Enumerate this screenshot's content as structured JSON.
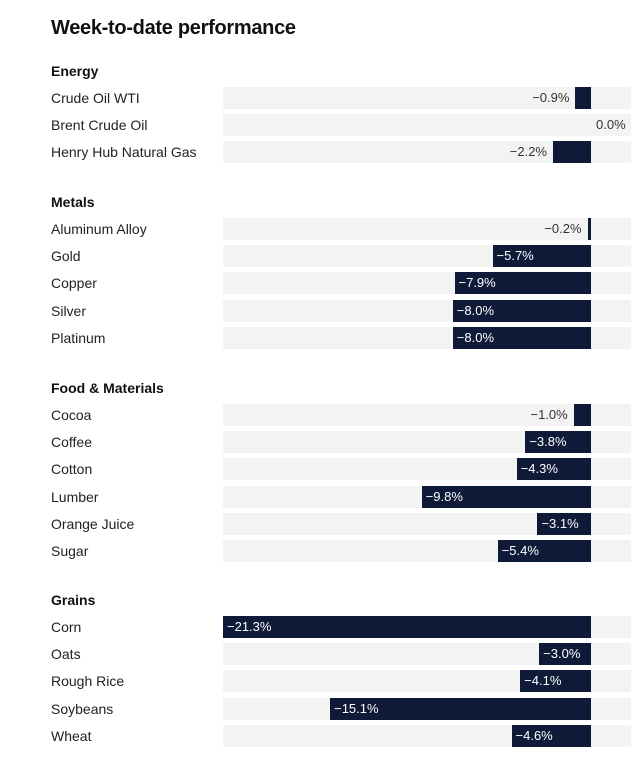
{
  "title": "Week-to-date performance",
  "colors": {
    "bar": "#0e1a38",
    "row_background": "#f3f3f3"
  },
  "chart_data": {
    "type": "bar",
    "orientation": "horizontal",
    "title": "Week-to-date performance",
    "unit": "%",
    "xlim": [
      -21.3,
      0
    ],
    "groups": [
      {
        "name": "Energy",
        "items": [
          {
            "label": "Crude Oil WTI",
            "value": -0.9,
            "text": "−0.9%"
          },
          {
            "label": "Brent Crude Oil",
            "value": 0.0,
            "text": "0.0%"
          },
          {
            "label": "Henry Hub Natural Gas",
            "value": -2.2,
            "text": "−2.2%"
          }
        ]
      },
      {
        "name": "Metals",
        "items": [
          {
            "label": "Aluminum Alloy",
            "value": -0.2,
            "text": "−0.2%"
          },
          {
            "label": "Gold",
            "value": -5.7,
            "text": "−5.7%"
          },
          {
            "label": "Copper",
            "value": -7.9,
            "text": "−7.9%"
          },
          {
            "label": "Silver",
            "value": -8.0,
            "text": "−8.0%"
          },
          {
            "label": "Platinum",
            "value": -8.0,
            "text": "−8.0%"
          }
        ]
      },
      {
        "name": "Food & Materials",
        "items": [
          {
            "label": "Cocoa",
            "value": -1.0,
            "text": "−1.0%"
          },
          {
            "label": "Coffee",
            "value": -3.8,
            "text": "−3.8%"
          },
          {
            "label": "Cotton",
            "value": -4.3,
            "text": "−4.3%"
          },
          {
            "label": "Lumber",
            "value": -9.8,
            "text": "−9.8%"
          },
          {
            "label": "Orange Juice",
            "value": -3.1,
            "text": "−3.1%"
          },
          {
            "label": "Sugar",
            "value": -5.4,
            "text": "−5.4%"
          }
        ]
      },
      {
        "name": "Grains",
        "items": [
          {
            "label": "Corn",
            "value": -21.3,
            "text": "−21.3%"
          },
          {
            "label": "Oats",
            "value": -3.0,
            "text": "−3.0%"
          },
          {
            "label": "Rough Rice",
            "value": -4.1,
            "text": "−4.1%"
          },
          {
            "label": "Soybeans",
            "value": -15.1,
            "text": "−15.1%"
          },
          {
            "label": "Wheat",
            "value": -4.6,
            "text": "−4.6%"
          }
        ]
      }
    ]
  }
}
